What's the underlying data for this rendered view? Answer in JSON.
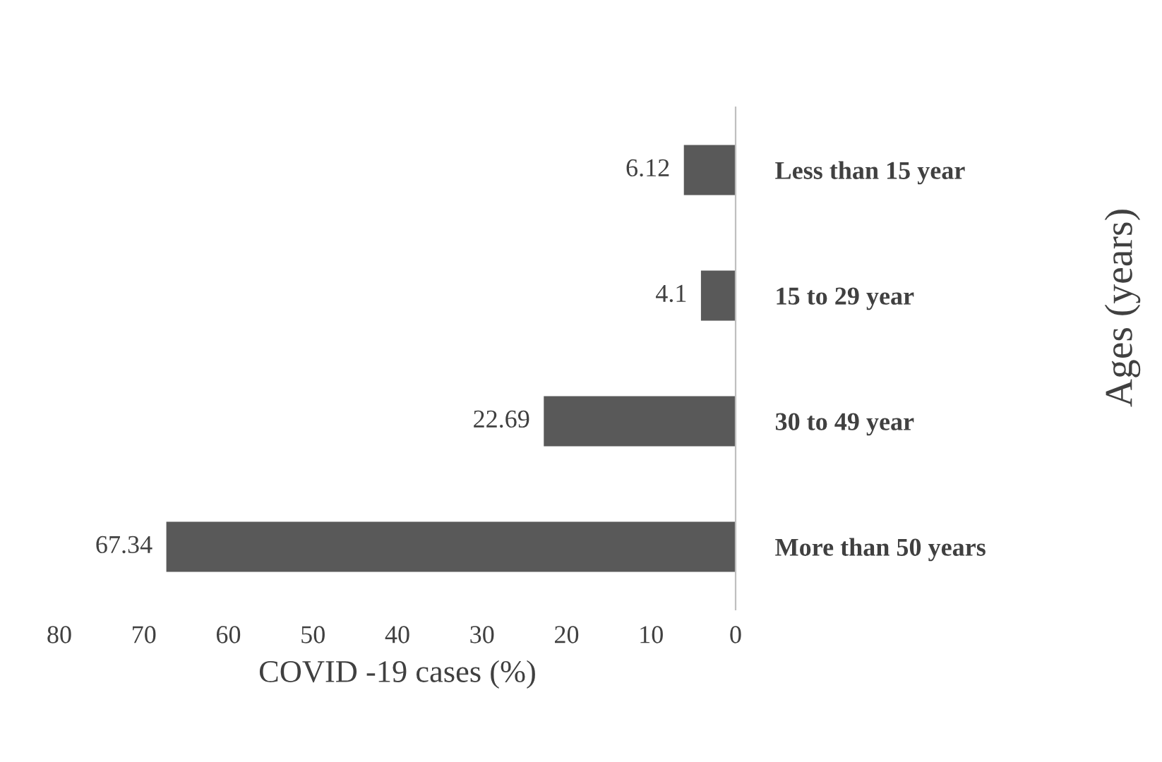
{
  "chart_data": {
    "type": "bar",
    "orientation": "horizontal",
    "categories": [
      "Less than 15 year",
      "15 to 29 year",
      "30 to 49 year",
      "More than 50 years"
    ],
    "values": [
      6.12,
      4.1,
      22.69,
      67.34
    ],
    "color": "#595959",
    "data_labels": true,
    "xlabel": "COVID -19 cases (%)",
    "ylabel": "Ages (years)",
    "xlim": [
      80,
      0
    ],
    "xticks": [
      80,
      70,
      60,
      50,
      40,
      30,
      20,
      10,
      0
    ],
    "grid": false,
    "legend": false
  }
}
